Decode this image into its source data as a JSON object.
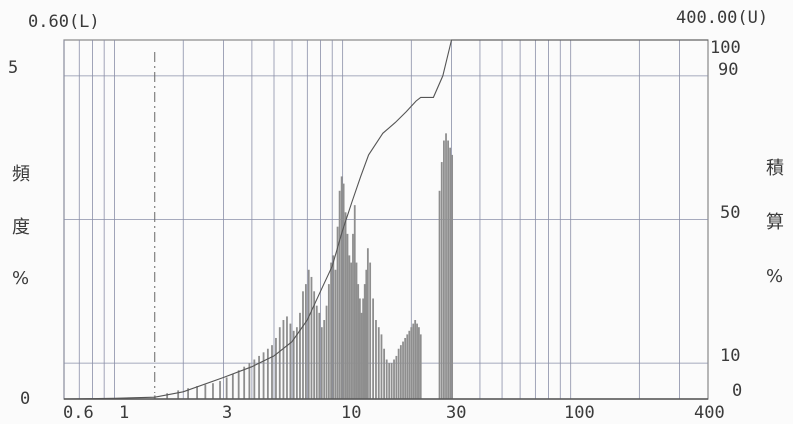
{
  "chart_data": {
    "type": "bar",
    "lower_limit_label": "0.60(L)",
    "upper_limit_label": "400.00(U)",
    "x_axis": {
      "scale": "log",
      "range": [
        0.6,
        400
      ],
      "tick_labels": [
        "0.6",
        "1",
        "3",
        "10",
        "30",
        "100",
        "400"
      ]
    },
    "y_left": {
      "label_chars": [
        "頻",
        "度",
        "%"
      ],
      "range": [
        0,
        5
      ],
      "tick_labels": [
        "0",
        "5"
      ]
    },
    "y_right": {
      "label_chars": [
        "積",
        "算",
        "%"
      ],
      "range": [
        0,
        100
      ],
      "tick_labels": [
        "0",
        "10",
        "50",
        "90",
        "100"
      ]
    },
    "grid": true,
    "marker_line_x": 1.5,
    "series": [
      {
        "type": "bar",
        "x": [
          1.5,
          1.7,
          1.9,
          2.1,
          2.3,
          2.5,
          2.7,
          2.9,
          3.1,
          3.3,
          3.5,
          3.7,
          3.9,
          4.1,
          4.3,
          4.5,
          4.7,
          4.9,
          5.1,
          5.3,
          5.5,
          5.7,
          5.9,
          6.1,
          6.3,
          6.5,
          6.7,
          6.9,
          7.1,
          7.3,
          7.5,
          7.7,
          7.9,
          8.1,
          8.3,
          8.5,
          8.7,
          8.9,
          9.1,
          9.3,
          9.5,
          9.7,
          9.9,
          10.1,
          10.3,
          10.5,
          10.7,
          10.9,
          11.1,
          11.3,
          11.5,
          11.7,
          11.9,
          12.1,
          12.3,
          12.5,
          12.7,
          12.9,
          13.2,
          13.6,
          14,
          14.4,
          14.8,
          15.2,
          15.6,
          16,
          16.4,
          16.8,
          17.2,
          17.6,
          18,
          18.4,
          18.8,
          19.2,
          19.6,
          20,
          20.4,
          20.8,
          21.2,
          21.6,
          22,
          26.6,
          27.2,
          27.8,
          28.4,
          29,
          29.6,
          30.2
        ],
        "values": [
          0.05,
          0.08,
          0.12,
          0.15,
          0.18,
          0.2,
          0.22,
          0.25,
          0.3,
          0.35,
          0.4,
          0.45,
          0.5,
          0.55,
          0.6,
          0.65,
          0.7,
          0.75,
          0.85,
          1.0,
          1.1,
          1.15,
          1.05,
          0.95,
          1.0,
          1.2,
          1.5,
          1.6,
          1.8,
          1.7,
          1.5,
          1.3,
          1.2,
          1.0,
          1.1,
          1.3,
          1.6,
          1.9,
          2.0,
          1.8,
          2.4,
          2.9,
          3.1,
          3.0,
          2.6,
          2.3,
          2.0,
          1.9,
          2.3,
          2.7,
          1.9,
          1.6,
          1.4,
          1.2,
          1.4,
          1.6,
          1.8,
          2.1,
          1.9,
          1.4,
          1.1,
          1.0,
          0.9,
          0.7,
          0.55,
          0.5,
          0.5,
          0.55,
          0.6,
          0.7,
          0.75,
          0.8,
          0.85,
          0.9,
          0.95,
          1.0,
          1.05,
          1.1,
          1.05,
          1.0,
          0.9,
          2.9,
          3.3,
          3.6,
          3.7,
          3.6,
          3.5,
          3.4
        ]
      },
      {
        "type": "line",
        "x": [
          0.6,
          1,
          1.5,
          2,
          3,
          4,
          5,
          6,
          7,
          8,
          9,
          10,
          11,
          12,
          13,
          15,
          17,
          19,
          21,
          22,
          25,
          27.5,
          30,
          400
        ],
        "values": [
          0,
          0.2,
          0.5,
          2,
          6,
          9,
          12,
          16,
          22,
          30,
          37,
          47,
          55,
          62,
          68,
          74,
          77,
          80,
          83,
          84,
          84,
          90,
          100,
          100
        ]
      }
    ]
  }
}
